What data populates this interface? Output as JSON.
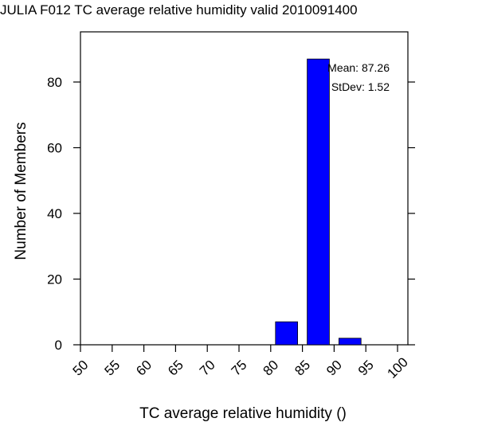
{
  "chart_data": {
    "type": "bar",
    "title": "JULIA F012 TC average relative humidity valid 2010091400",
    "xlabel": "TC average relative humidity ()",
    "ylabel": "Number of Members",
    "xlim": [
      50,
      100
    ],
    "ylim": [
      0,
      90
    ],
    "x_ticks": [
      "50",
      "55",
      "60",
      "65",
      "70",
      "75",
      "80",
      "85",
      "90",
      "95",
      "100"
    ],
    "y_ticks": [
      "0",
      "20",
      "40",
      "60",
      "80"
    ],
    "bins": [
      {
        "start": 80,
        "end": 85,
        "value": 7
      },
      {
        "start": 85,
        "end": 90,
        "value": 87
      },
      {
        "start": 90,
        "end": 95,
        "value": 2
      }
    ],
    "annotations": {
      "mean": "Mean: 87.26",
      "stdev": "StDev: 1.52"
    },
    "colors": {
      "bar_fill": "#0000ff",
      "bar_stroke": "#000000"
    },
    "grid": false
  }
}
